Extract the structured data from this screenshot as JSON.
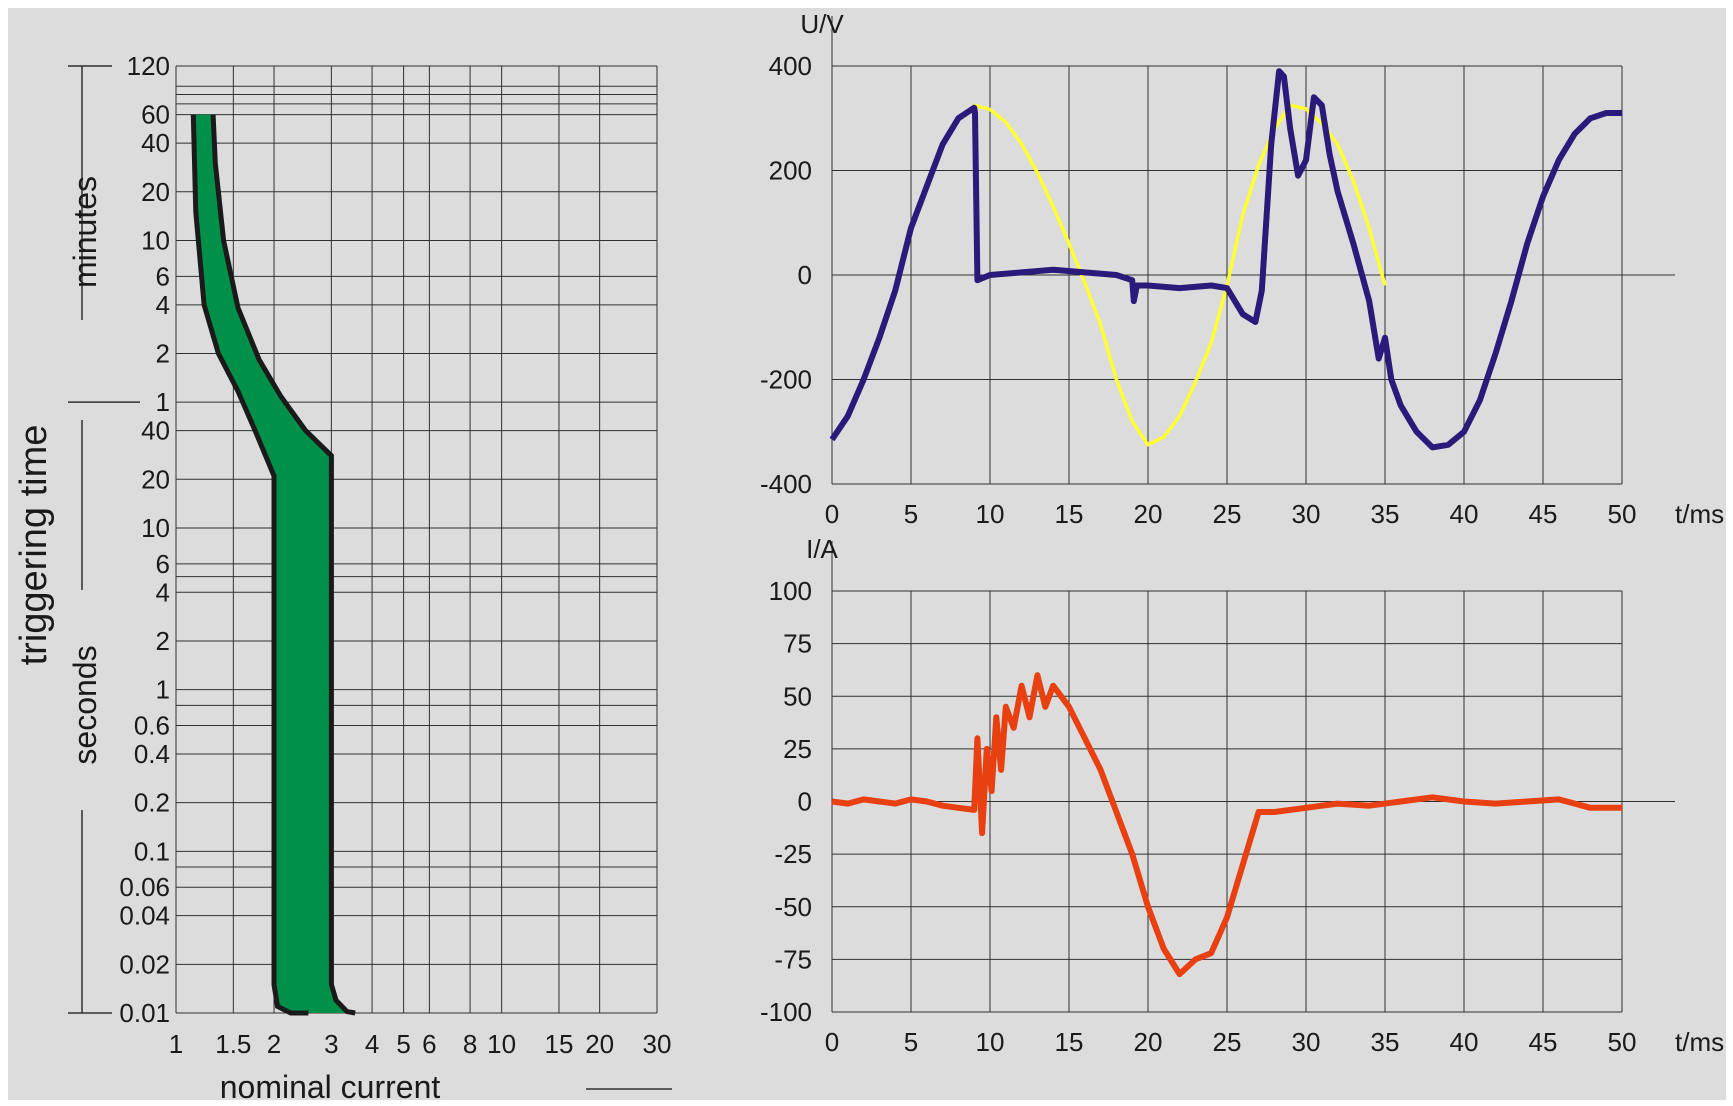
{
  "chart_data": [
    {
      "type": "area",
      "title": "",
      "xlabel": "nominal current",
      "ylabel": "triggering time",
      "y_group_labels": {
        "upper": "minutes",
        "lower": "seconds"
      },
      "x_scale": "log",
      "y_scale": "log",
      "grid": true,
      "x_ticks": [
        "1",
        "1.5",
        "2",
        "3",
        "4",
        "5",
        "6",
        "8",
        "10",
        "15",
        "20",
        "30"
      ],
      "x_tick_values": [
        1,
        1.5,
        2,
        3,
        4,
        5,
        6,
        8,
        10,
        15,
        20,
        30
      ],
      "y_ticks_minutes": [
        "120",
        "60",
        "40",
        "20",
        "10",
        "6",
        "4",
        "2",
        "1"
      ],
      "y_tick_values_minutes": [
        120,
        60,
        40,
        20,
        10,
        6,
        4,
        2,
        1
      ],
      "y_ticks_seconds": [
        "40",
        "20",
        "10",
        "6",
        "4",
        "2",
        "1",
        "0.6",
        "0.4",
        "0.2",
        "0.1",
        "0.06",
        "0.04",
        "0.02",
        "0.01"
      ],
      "y_tick_values_seconds": [
        40,
        20,
        10,
        6,
        4,
        2,
        1,
        0.6,
        0.4,
        0.2,
        0.1,
        0.06,
        0.04,
        0.02,
        0.01
      ],
      "fill_color": "#00904a",
      "series": [
        {
          "role": "lower-bound",
          "x": [
            1.13,
            1.15,
            1.22,
            1.35,
            1.55,
            1.75,
            2.0,
            2.0,
            2.05,
            2.25,
            2.55
          ],
          "t_seconds": [
            3600,
            900,
            240,
            120,
            70,
            40,
            21,
            0.015,
            0.011,
            0.01,
            0.01
          ]
        },
        {
          "role": "upper-bound",
          "x": [
            1.3,
            1.32,
            1.4,
            1.55,
            1.8,
            2.1,
            2.5,
            3.0,
            3.0,
            3.1,
            3.35,
            3.55
          ],
          "t_seconds": [
            3600,
            1800,
            600,
            230,
            110,
            65,
            40,
            28,
            0.015,
            0.012,
            0.0102,
            0.01
          ]
        }
      ]
    },
    {
      "type": "line",
      "title": "",
      "xlabel": "t/ms",
      "ylabel": "U/V",
      "xlim": [
        0,
        50
      ],
      "ylim": [
        -400,
        400
      ],
      "x_ticks": [
        "0",
        "5",
        "10",
        "15",
        "20",
        "25",
        "30",
        "35",
        "40",
        "45",
        "50"
      ],
      "y_ticks": [
        "400",
        "200",
        "0",
        "-200",
        "-400"
      ],
      "grid": true,
      "series": [
        {
          "color": "#ffff33",
          "x": [
            9,
            10,
            11,
            12,
            13,
            14,
            15,
            16,
            17,
            18,
            19,
            20,
            21,
            22,
            23,
            24,
            25,
            26,
            27,
            28,
            29,
            30,
            31,
            32,
            33,
            34,
            35
          ],
          "values": [
            325,
            317,
            292,
            251,
            196,
            131,
            60,
            -15,
            -95,
            -200,
            -280,
            -325,
            -310,
            -270,
            -205,
            -130,
            -20,
            115,
            210,
            280,
            325,
            318,
            290,
            250,
            180,
            90,
            -20
          ]
        },
        {
          "color": "#2b1a7a",
          "x": [
            0,
            1,
            2,
            3,
            4,
            5,
            6,
            7,
            8,
            9,
            9.05,
            9.2,
            10,
            12,
            14,
            16,
            18,
            19,
            19.1,
            19.3,
            20,
            22,
            24,
            25,
            26,
            26.8,
            27.2,
            27.8,
            28.3,
            28.6,
            29,
            29.5,
            30,
            30.5,
            31,
            31.5,
            32,
            33,
            34,
            34.6,
            35,
            35.4,
            36,
            37,
            38,
            39,
            40,
            41,
            42,
            43,
            44,
            45,
            46,
            47,
            48,
            49,
            50
          ],
          "values": [
            -315,
            -270,
            -200,
            -120,
            -30,
            90,
            170,
            250,
            300,
            320,
            310,
            -10,
            0,
            5,
            10,
            5,
            0,
            -10,
            -50,
            -20,
            -20,
            -25,
            -20,
            -25,
            -75,
            -90,
            -30,
            250,
            390,
            380,
            280,
            190,
            220,
            340,
            325,
            230,
            160,
            60,
            -50,
            -160,
            -120,
            -200,
            -250,
            -300,
            -330,
            -325,
            -300,
            -240,
            -150,
            -50,
            60,
            150,
            220,
            270,
            300,
            310,
            310
          ]
        }
      ]
    },
    {
      "type": "line",
      "title": "",
      "xlabel": "t/ms",
      "ylabel": "I/A",
      "xlim": [
        0,
        50
      ],
      "ylim": [
        -100,
        100
      ],
      "x_ticks": [
        "0",
        "5",
        "10",
        "15",
        "20",
        "25",
        "30",
        "35",
        "40",
        "45",
        "50"
      ],
      "y_ticks": [
        "100",
        "75",
        "50",
        "25",
        "0",
        "-25",
        "-50",
        "-75",
        "-100"
      ],
      "grid": true,
      "series": [
        {
          "color": "#e84010",
          "x": [
            0,
            1,
            2,
            3,
            4,
            5,
            6,
            7,
            8,
            9,
            9.2,
            9.5,
            9.8,
            10.1,
            10.4,
            10.7,
            11,
            11.5,
            12,
            12.5,
            13,
            13.5,
            14,
            14.5,
            15,
            16,
            17,
            18,
            19,
            20,
            21,
            22,
            23,
            24,
            25,
            26,
            27,
            28,
            30,
            32,
            34,
            36,
            38,
            40,
            42,
            44,
            46,
            48,
            50
          ],
          "values": [
            0,
            -1,
            1,
            0,
            -1,
            1,
            0,
            -2,
            -3,
            -4,
            30,
            -15,
            25,
            5,
            40,
            15,
            45,
            35,
            55,
            40,
            60,
            45,
            55,
            50,
            45,
            30,
            15,
            -5,
            -25,
            -50,
            -70,
            -82,
            -75,
            -72,
            -55,
            -30,
            -5,
            -5,
            -3,
            -1,
            -2,
            0,
            2,
            0,
            -1,
            0,
            1,
            -3,
            -3
          ]
        }
      ]
    }
  ]
}
